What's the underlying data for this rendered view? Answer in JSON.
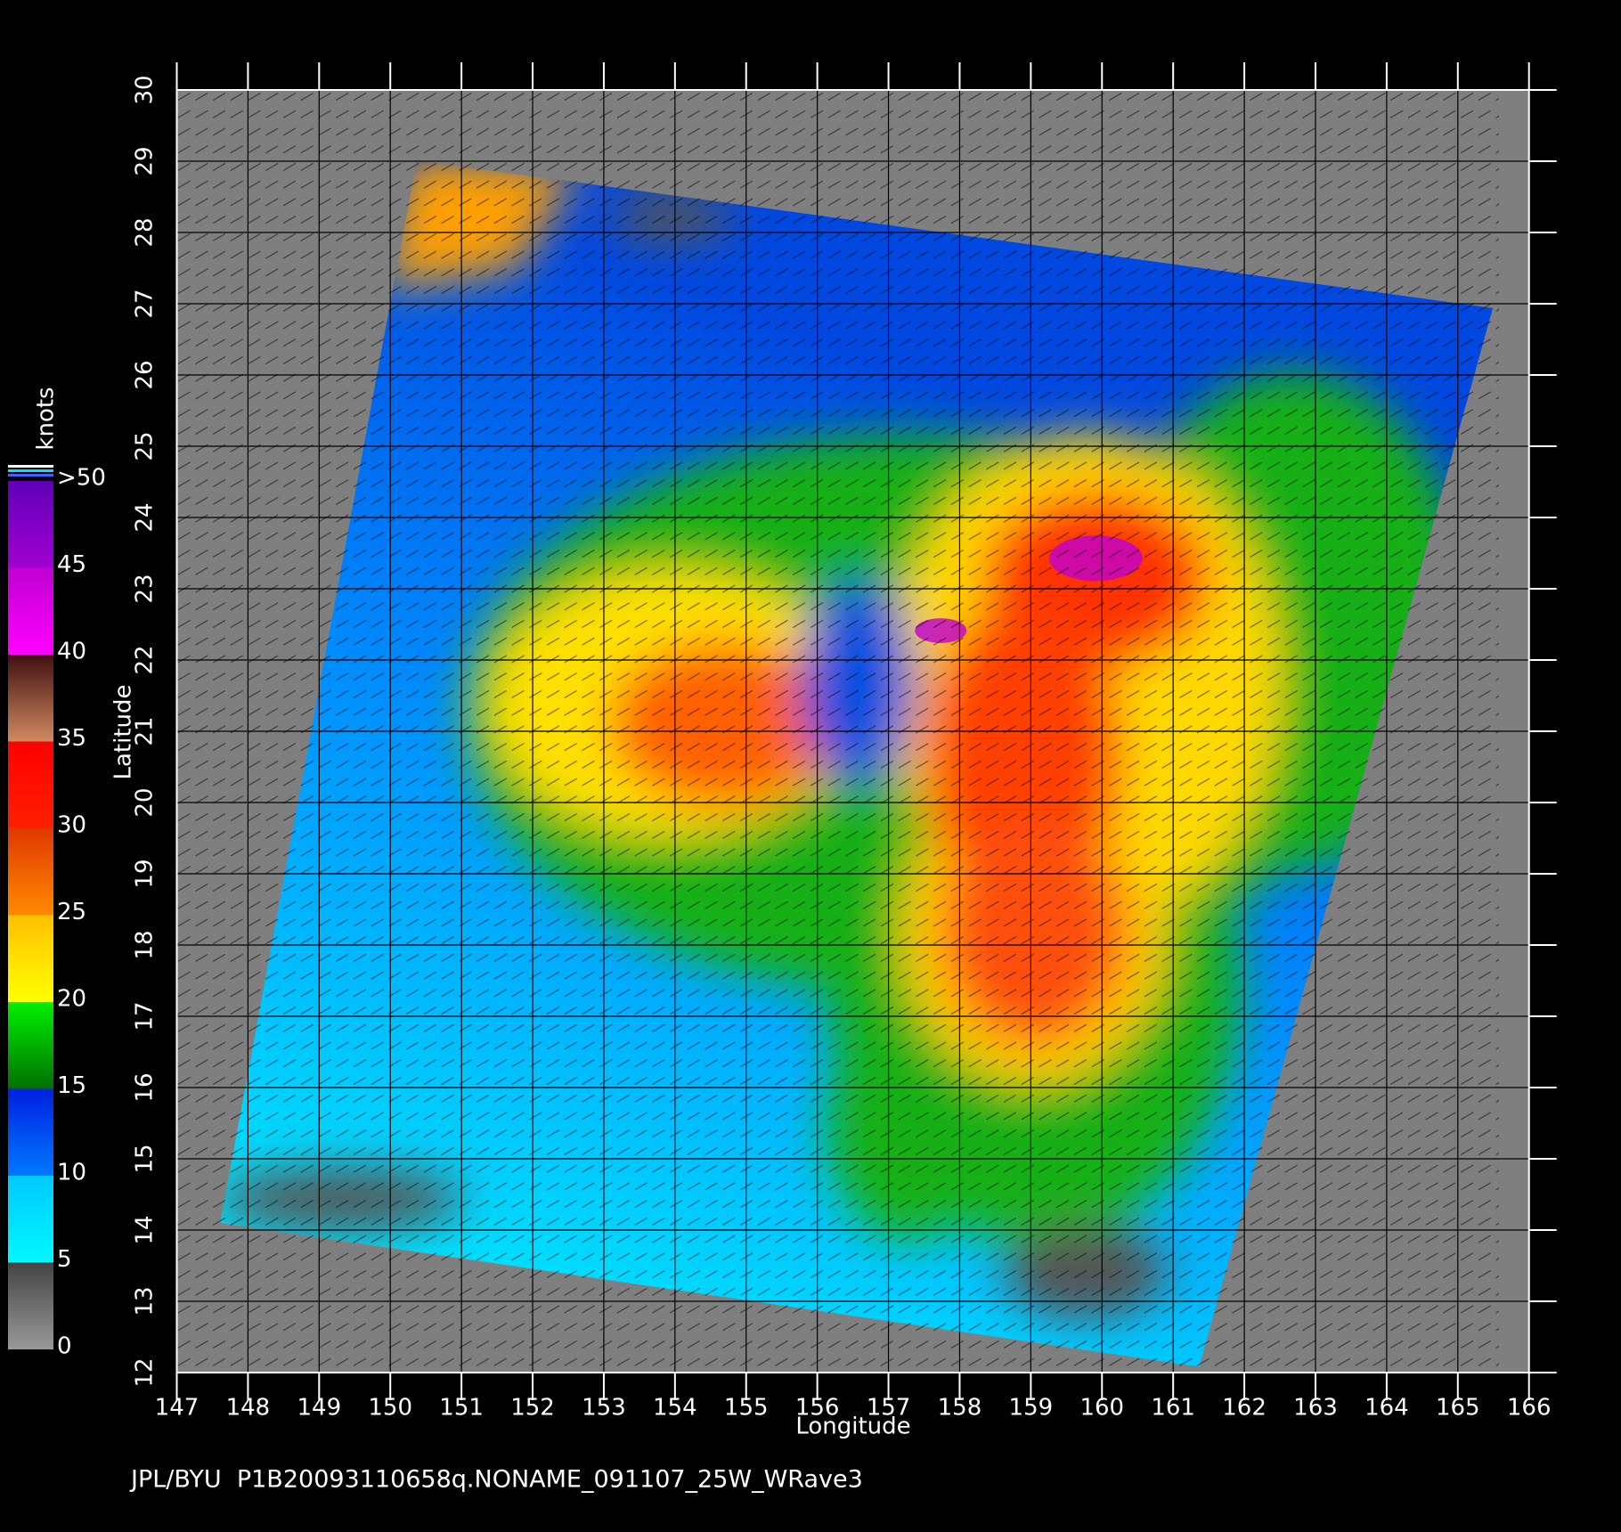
{
  "x_axis": {
    "label": "Longitude",
    "lim": [
      147,
      166
    ],
    "ticks": [
      147,
      148,
      149,
      150,
      151,
      152,
      153,
      154,
      155,
      156,
      157,
      158,
      159,
      160,
      161,
      162,
      163,
      164,
      165,
      166
    ]
  },
  "y_axis": {
    "label": "Latitude",
    "lim": [
      12,
      30
    ],
    "ticks": [
      12,
      13,
      14,
      15,
      16,
      17,
      18,
      19,
      20,
      21,
      22,
      23,
      24,
      25,
      26,
      27,
      28,
      29,
      30
    ]
  },
  "colorbar": {
    "label": "knots",
    "lim": [
      0,
      50
    ],
    "ticks": [
      0,
      5,
      10,
      15,
      20,
      25,
      30,
      35,
      40,
      45,
      {
        "value": 50,
        "label": ">50"
      }
    ],
    "colors": [
      [
        "#999999",
        "#444444"
      ],
      [
        "#00f8ff",
        "#00c8ff"
      ],
      [
        "#0078ff",
        "#0020e0"
      ],
      [
        "#007000",
        "#00f000"
      ],
      [
        "#ffff00",
        "#ffc000"
      ],
      [
        "#ff8a00",
        "#e03800"
      ],
      [
        "#ff2000",
        "#ff0000"
      ],
      [
        "#d08a60",
        "#401010"
      ],
      [
        "#ff00ff",
        "#c000d0"
      ],
      [
        "#a000d0",
        "#6000b8"
      ]
    ]
  },
  "footer": "JPL/BYU  P1B20093110658q.NONAME_091107_25W_WRave3"
}
